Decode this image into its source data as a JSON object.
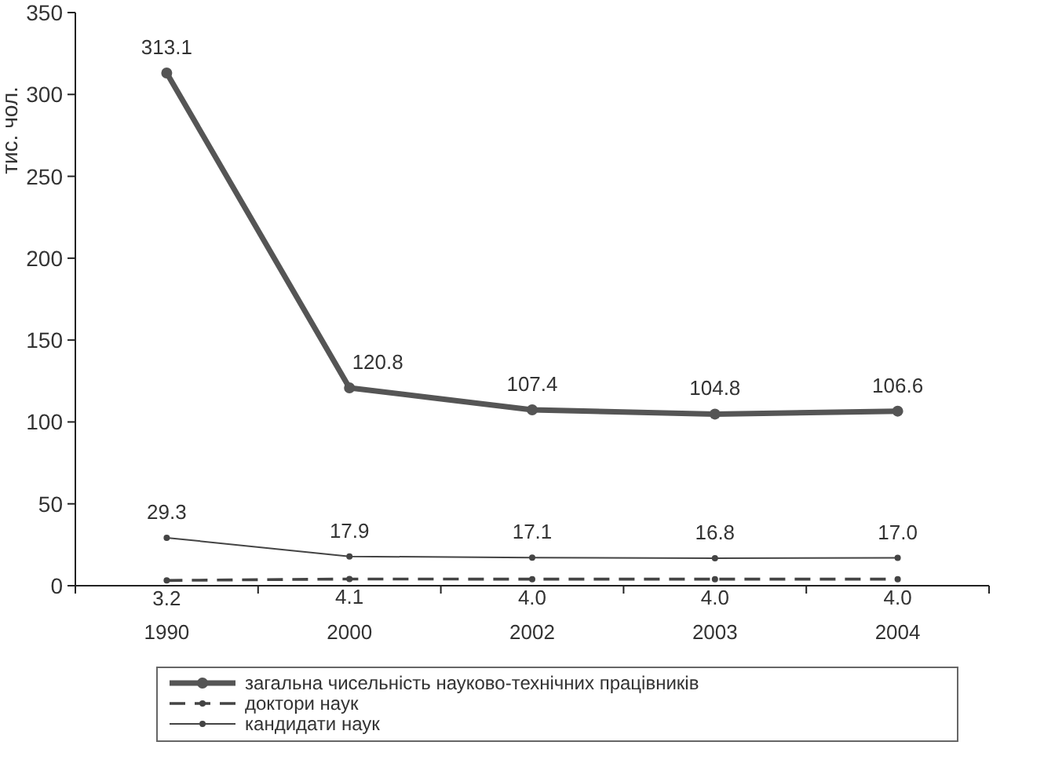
{
  "chart_data": {
    "type": "line",
    "ylabel": "тис. чол.",
    "categories": [
      "1990",
      "2000",
      "2002",
      "2003",
      "2004"
    ],
    "ylim": [
      0,
      350
    ],
    "yticks": [
      0,
      50,
      100,
      150,
      200,
      250,
      300,
      350
    ],
    "grid": false,
    "legend": "bottom",
    "marker": "circle",
    "series": [
      {
        "name": "загальна чисельність науково-технічних працівників",
        "color": "#555555",
        "line_style": "solid",
        "values": [
          313.1,
          120.8,
          107.4,
          104.8,
          106.6
        ],
        "value_labels": [
          "313.1",
          "120.8",
          "107.4",
          "104.8",
          "106.6"
        ]
      },
      {
        "name": "доктори наук",
        "color": "#444444",
        "line_style": "dashed",
        "values": [
          3.2,
          4.1,
          4.0,
          4.0,
          4.0
        ],
        "value_labels": [
          "3.2",
          "4.1",
          "4.0",
          "4.0",
          "4.0"
        ]
      },
      {
        "name": "кандидати наук",
        "color": "#444444",
        "line_style": "solid",
        "values": [
          29.3,
          17.9,
          17.1,
          16.8,
          17.0
        ],
        "value_labels": [
          "29.3",
          "17.9",
          "17.1",
          "16.8",
          "17.0"
        ]
      }
    ]
  }
}
